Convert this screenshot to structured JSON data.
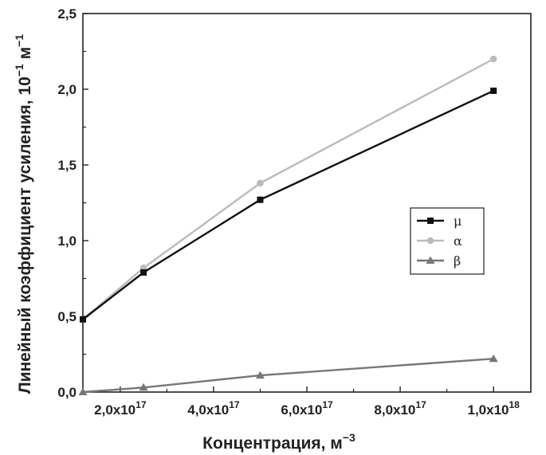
{
  "chart_data": {
    "type": "line",
    "title": "",
    "xlabel": "Концентрация, м",
    "xlabel_exp": "−3",
    "ylabel": "Линейный коэффициент усиления, 10",
    "ylabel_exp": "−1",
    "ylabel_unit": " м",
    "ylabel_unit_exp": "−1",
    "xlim": [
      1.2e+17,
      1.08e+18
    ],
    "ylim": [
      0,
      2.5
    ],
    "x_ticks": [
      {
        "value": 2e+17,
        "mantissa": "2,0x10",
        "exp": "17"
      },
      {
        "value": 4e+17,
        "mantissa": "4,0x10",
        "exp": "17"
      },
      {
        "value": 6e+17,
        "mantissa": "6,0x10",
        "exp": "17"
      },
      {
        "value": 8e+17,
        "mantissa": "8,0x10",
        "exp": "17"
      },
      {
        "value": 1e+18,
        "mantissa": "1,0x10",
        "exp": "18"
      }
    ],
    "y_ticks": [
      {
        "value": 0,
        "label": "0,0"
      },
      {
        "value": 0.5,
        "label": "0,5"
      },
      {
        "value": 1.0,
        "label": "1,0"
      },
      {
        "value": 1.5,
        "label": "1,5"
      },
      {
        "value": 2.0,
        "label": "2,0"
      },
      {
        "value": 2.5,
        "label": "2,5"
      }
    ],
    "grid": false,
    "legend_position": "middle-right",
    "series": [
      {
        "name": "μ",
        "color": "#111111",
        "marker": "square",
        "points": [
          [
            1.2e+17,
            0.48
          ],
          [
            2.5e+17,
            0.79
          ],
          [
            5e+17,
            1.27
          ],
          [
            1e+18,
            1.99
          ]
        ]
      },
      {
        "name": "α",
        "color": "#bbbbbb",
        "marker": "circle",
        "points": [
          [
            1.2e+17,
            0.48
          ],
          [
            2.5e+17,
            0.82
          ],
          [
            5e+17,
            1.38
          ],
          [
            1e+18,
            2.2
          ]
        ]
      },
      {
        "name": "β",
        "color": "#777777",
        "marker": "triangle",
        "points": [
          [
            1.2e+17,
            0.0
          ],
          [
            2.5e+17,
            0.03
          ],
          [
            5e+17,
            0.11
          ],
          [
            1e+18,
            0.22
          ]
        ]
      }
    ]
  }
}
